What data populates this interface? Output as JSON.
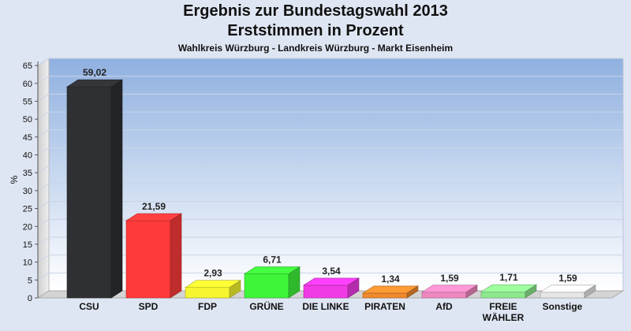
{
  "chart_data": {
    "type": "bar",
    "title": "Ergebnis zur Bundestagswahl 2013",
    "subtitle": "Erststimmen in Prozent",
    "subsubtitle": "Wahlkreis Würzburg - Landkreis Würzburg - Markt Eisenheim",
    "ylabel": "%",
    "ylim": [
      0,
      67
    ],
    "yticks": [
      0,
      5,
      10,
      15,
      20,
      25,
      30,
      35,
      40,
      45,
      50,
      55,
      60,
      65
    ],
    "grid": true,
    "categories": [
      "CSU",
      "SPD",
      "FDP",
      "GRÜNE",
      "DIE LINKE",
      "PIRATEN",
      "AfD",
      "FREIE WÄHLER",
      "Sonstige"
    ],
    "category_lines": [
      [
        "CSU"
      ],
      [
        "SPD"
      ],
      [
        "FDP"
      ],
      [
        "GRÜNE"
      ],
      [
        "DIE LINKE"
      ],
      [
        "PIRATEN"
      ],
      [
        "AfD"
      ],
      [
        "FREIE",
        "WÄHLER"
      ],
      [
        "Sonstige"
      ]
    ],
    "values": [
      59.02,
      21.59,
      2.93,
      6.71,
      3.54,
      1.34,
      1.59,
      1.71,
      1.59
    ],
    "value_labels": [
      "59,02",
      "21,59",
      "2,93",
      "6,71",
      "3,54",
      "1,34",
      "1,59",
      "1,71",
      "1,59"
    ],
    "colors": [
      "#2e3034",
      "#ff3a3a",
      "#f5f530",
      "#3ef53a",
      "#f03ae6",
      "#f08a2e",
      "#f088c0",
      "#8ee88e",
      "#e6e6e6"
    ]
  }
}
